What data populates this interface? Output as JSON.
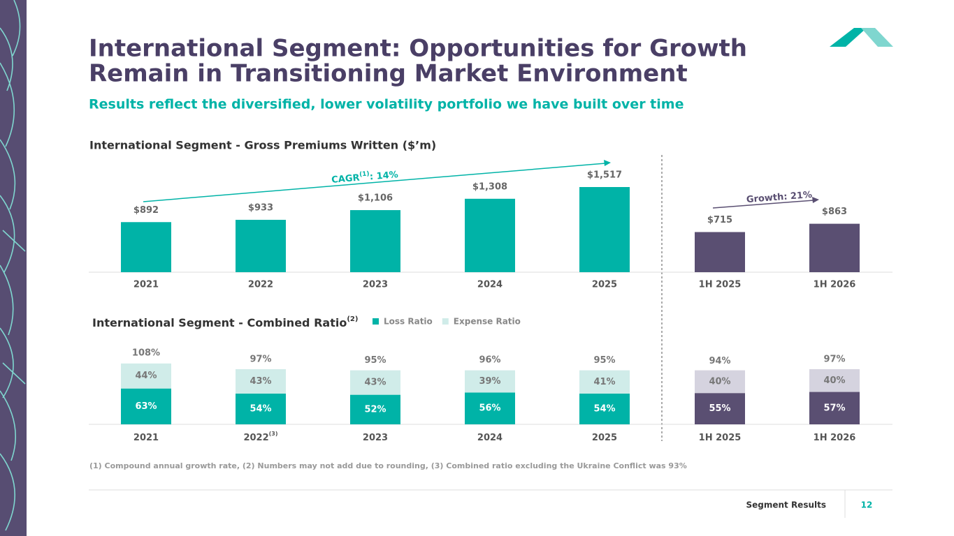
{
  "header": {
    "title_lines": [
      "International Segment: Opportunities for Growth",
      "Remain in Transitioning Market Environment"
    ],
    "subtitle": "Results reflect the diversified, lower volatility portfolio we have built over time"
  },
  "chart_data": [
    {
      "type": "bar",
      "title": "International Segment - Gross Premiums Written ($’m)",
      "categories": [
        "2021",
        "2022",
        "2023",
        "2024",
        "2025",
        "1H 2025",
        "1H 2026"
      ],
      "values": [
        892,
        933,
        1106,
        1308,
        1517,
        715,
        863
      ],
      "value_labels": [
        "$892",
        "$933",
        "$1,106",
        "$1,308",
        "$1,517",
        "$715",
        "$863"
      ],
      "colors": [
        "#00b3a7",
        "#00b3a7",
        "#00b3a7",
        "#00b3a7",
        "#00b3a7",
        "#5a4f72",
        "#5a4f72"
      ],
      "annotations": [
        {
          "text": "CAGR",
          "sup": "(1)",
          "tail": ": 14%",
          "color": "#00b3a7"
        },
        {
          "text": "Growth: 21%",
          "color": "#5a4f72"
        }
      ]
    },
    {
      "type": "stacked_bar",
      "title": "International Segment - Combined Ratio",
      "title_sup": "(2)",
      "categories": [
        "2021",
        "2022",
        "2023",
        "2024",
        "2025",
        "1H 2025",
        "1H 2026"
      ],
      "category_sups": [
        null,
        "(3)",
        null,
        null,
        null,
        null,
        null
      ],
      "series": [
        {
          "name": "Loss Ratio",
          "color": "#00b3a7",
          "colors": [
            "#00b3a7",
            "#00b3a7",
            "#00b3a7",
            "#00b3a7",
            "#00b3a7",
            "#5a4f72",
            "#5a4f72"
          ],
          "values": [
            63,
            54,
            52,
            56,
            54,
            55,
            57
          ],
          "value_labels": [
            "63%",
            "54%",
            "52%",
            "56%",
            "54%",
            "55%",
            "57%"
          ]
        },
        {
          "name": "Expense Ratio",
          "color": "#d0ece9",
          "colors": [
            "#d0ece9",
            "#d0ece9",
            "#d0ece9",
            "#d0ece9",
            "#d0ece9",
            "#d5d3df",
            "#d5d3df"
          ],
          "values": [
            44,
            43,
            43,
            39,
            41,
            40,
            40
          ],
          "value_labels": [
            "44%",
            "43%",
            "43%",
            "39%",
            "41%",
            "40%",
            "40%"
          ]
        }
      ],
      "totals": [
        108,
        97,
        95,
        96,
        95,
        94,
        97
      ],
      "total_labels": [
        "108%",
        "97%",
        "95%",
        "96%",
        "95%",
        "94%",
        "97%"
      ]
    }
  ],
  "footnote": "(1) Compound annual growth rate, (2) Numbers may not add due to rounding, (3) Combined ratio excluding the Ukraine Conflict was 93%",
  "footer": {
    "section": "Segment Results",
    "page": "12"
  }
}
